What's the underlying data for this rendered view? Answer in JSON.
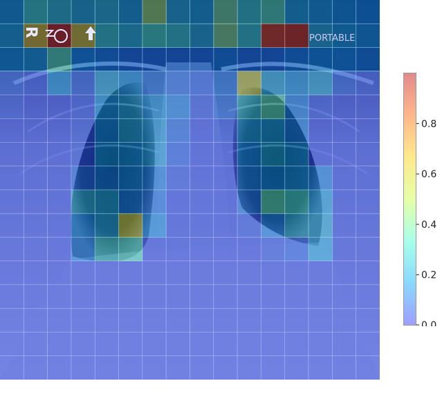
{
  "image": {
    "subject": "chest x-ray attention heatmap overlay",
    "grid_rows": 16,
    "grid_cols": 16,
    "markers": {
      "side_marker": "R",
      "orientation_arrow": "up-arrow-icon",
      "portable_label": "PORTABLE"
    }
  },
  "heatmap": {
    "values": [
      [
        0.2,
        0.32,
        0.28,
        0.24,
        0.26,
        0.22,
        0.46,
        0.24,
        0.22,
        0.4,
        0.3,
        0.36,
        0.22,
        0.2,
        0.18,
        0.16
      ],
      [
        0.22,
        0.62,
        0.92,
        0.6,
        0.3,
        0.26,
        0.34,
        0.3,
        0.24,
        0.42,
        0.3,
        0.88,
        0.9,
        0.24,
        0.2,
        0.18
      ],
      [
        0.18,
        0.2,
        0.36,
        0.16,
        0.14,
        0.12,
        0.12,
        0.12,
        0.12,
        0.14,
        0.12,
        0.12,
        0.14,
        0.16,
        0.16,
        0.14
      ],
      [
        0.08,
        0.06,
        0.18,
        0.08,
        0.22,
        0.18,
        0.12,
        0.1,
        0.08,
        0.12,
        0.56,
        0.22,
        0.18,
        0.22,
        0.08,
        0.06
      ],
      [
        0.06,
        0.04,
        0.04,
        0.06,
        0.18,
        0.22,
        0.18,
        0.14,
        0.06,
        0.1,
        0.28,
        0.36,
        0.14,
        0.06,
        0.04,
        0.04
      ],
      [
        0.04,
        0.04,
        0.04,
        0.06,
        0.16,
        0.22,
        0.2,
        0.1,
        0.04,
        0.06,
        0.2,
        0.2,
        0.14,
        0.04,
        0.04,
        0.04
      ],
      [
        0.04,
        0.04,
        0.04,
        0.06,
        0.18,
        0.18,
        0.2,
        0.08,
        0.04,
        0.04,
        0.16,
        0.22,
        0.18,
        0.04,
        0.04,
        0.04
      ],
      [
        0.04,
        0.04,
        0.04,
        0.1,
        0.14,
        0.16,
        0.14,
        0.06,
        0.04,
        0.04,
        0.14,
        0.16,
        0.18,
        0.14,
        0.04,
        0.04
      ],
      [
        0.04,
        0.04,
        0.04,
        0.24,
        0.22,
        0.14,
        0.12,
        0.04,
        0.04,
        0.04,
        0.12,
        0.36,
        0.32,
        0.2,
        0.04,
        0.04
      ],
      [
        0.04,
        0.04,
        0.04,
        0.16,
        0.22,
        0.56,
        0.16,
        0.04,
        0.04,
        0.04,
        0.06,
        0.14,
        0.24,
        0.22,
        0.04,
        0.04
      ],
      [
        0.04,
        0.04,
        0.04,
        0.14,
        0.3,
        0.34,
        0.04,
        0.04,
        0.04,
        0.04,
        0.04,
        0.06,
        0.08,
        0.2,
        0.04,
        0.04
      ],
      [
        0.04,
        0.04,
        0.04,
        0.04,
        0.04,
        0.04,
        0.04,
        0.04,
        0.04,
        0.04,
        0.04,
        0.04,
        0.04,
        0.04,
        0.04,
        0.04
      ],
      [
        0.04,
        0.04,
        0.04,
        0.04,
        0.04,
        0.04,
        0.04,
        0.04,
        0.04,
        0.04,
        0.04,
        0.04,
        0.04,
        0.04,
        0.04,
        0.04
      ],
      [
        0.04,
        0.04,
        0.04,
        0.04,
        0.04,
        0.04,
        0.04,
        0.04,
        0.04,
        0.04,
        0.04,
        0.04,
        0.04,
        0.04,
        0.04,
        0.04
      ],
      [
        0.04,
        0.04,
        0.04,
        0.04,
        0.04,
        0.04,
        0.04,
        0.04,
        0.04,
        0.04,
        0.04,
        0.04,
        0.04,
        0.04,
        0.04,
        0.04
      ],
      [
        0.04,
        0.04,
        0.04,
        0.04,
        0.04,
        0.04,
        0.04,
        0.04,
        0.04,
        0.04,
        0.04,
        0.04,
        0.04,
        0.04,
        0.04,
        0.04
      ]
    ]
  },
  "colorbar": {
    "min": 0.0,
    "max": 1.0,
    "ticks": [
      {
        "value": 0.0,
        "label": "0.0"
      },
      {
        "value": 0.2,
        "label": "0.2"
      },
      {
        "value": 0.4,
        "label": "0.4"
      },
      {
        "value": 0.6,
        "label": "0.6"
      },
      {
        "value": 0.8,
        "label": "0.8"
      }
    ],
    "colormap": [
      "#2b2bff",
      "#00a8ff",
      "#40ffd0",
      "#c8ff40",
      "#ffd000",
      "#ff6000",
      "#c00000"
    ]
  }
}
